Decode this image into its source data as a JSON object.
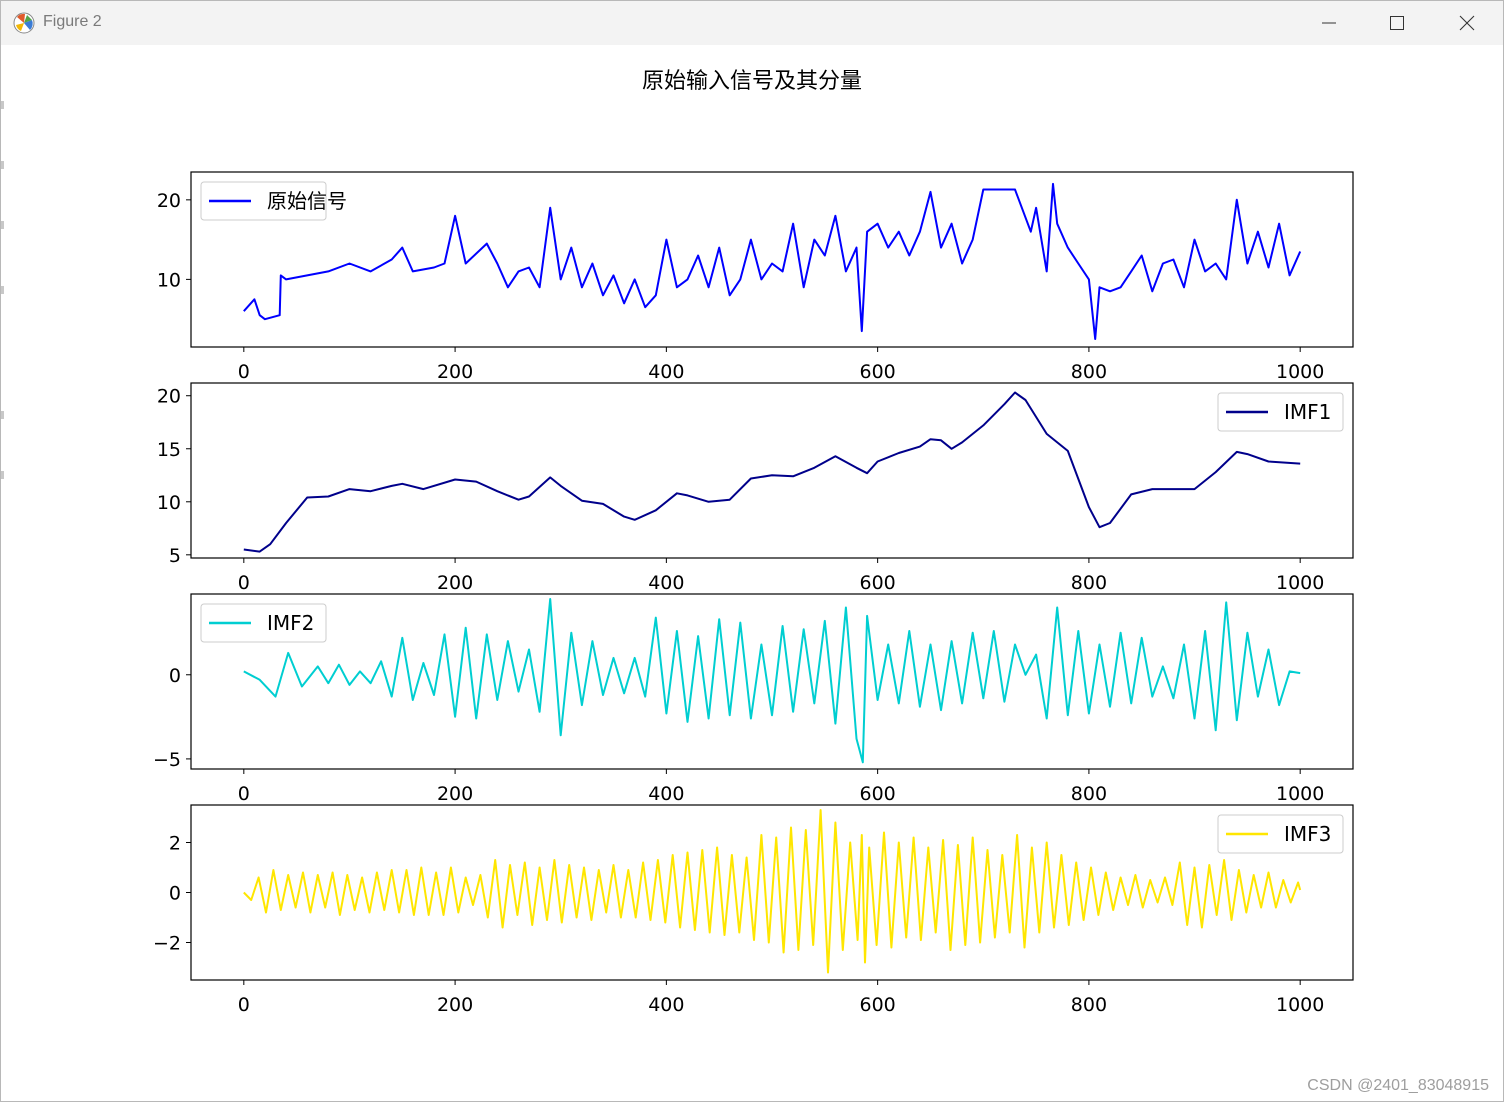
{
  "window": {
    "title": "Figure 2",
    "minimize_icon": "minimize-icon",
    "maximize_icon": "maximize-icon",
    "close_icon": "close-icon",
    "app_icon": "matplotlib-icon"
  },
  "figure": {
    "suptitle": "原始输入信号及其分量"
  },
  "watermark": "CSDN @2401_83048915",
  "colors": {
    "original": "#0000ff",
    "imf1": "#00008b",
    "imf2": "#00ced1",
    "imf3": "#ffe600"
  },
  "chart_data": [
    {
      "type": "line",
      "name": "原始信号",
      "legend": "原始信号",
      "legend_loc": "upper left",
      "color": "#0000ff",
      "xlim": [
        -50,
        1050
      ],
      "ylim": [
        1.5,
        23.5
      ],
      "xticks": [
        0,
        200,
        400,
        600,
        800,
        1000
      ],
      "yticks": [
        10,
        20
      ],
      "x": [
        0,
        10,
        15,
        20,
        34,
        35,
        40,
        60,
        80,
        100,
        120,
        140,
        150,
        160,
        180,
        190,
        200,
        210,
        230,
        240,
        250,
        260,
        270,
        280,
        290,
        300,
        310,
        320,
        330,
        340,
        350,
        360,
        370,
        380,
        390,
        400,
        410,
        420,
        430,
        440,
        450,
        460,
        470,
        480,
        490,
        500,
        510,
        520,
        530,
        540,
        550,
        560,
        570,
        580,
        585,
        590,
        600,
        610,
        620,
        630,
        640,
        650,
        660,
        670,
        680,
        690,
        700,
        710,
        720,
        730,
        745,
        750,
        760,
        766,
        770,
        780,
        790,
        800,
        806,
        810,
        820,
        830,
        840,
        850,
        860,
        870,
        880,
        890,
        900,
        910,
        920,
        930,
        940,
        950,
        960,
        970,
        980,
        990,
        1000
      ],
      "y": [
        6,
        7.5,
        5.5,
        5,
        5.5,
        10.5,
        10,
        10.5,
        11,
        12,
        11,
        12.5,
        14,
        11,
        11.5,
        12,
        18,
        12,
        14.5,
        12,
        9,
        11,
        11.5,
        9,
        19,
        10,
        14,
        9,
        12,
        8,
        10.5,
        7,
        10,
        6.5,
        8,
        15,
        9,
        10,
        13,
        9,
        14,
        8,
        10,
        15,
        10,
        12,
        11,
        17,
        9,
        15,
        13,
        18,
        11,
        14,
        3.5,
        16,
        17,
        14,
        16,
        13,
        16,
        21,
        14,
        17,
        12,
        15,
        21.3,
        21.3,
        21.3,
        21.3,
        16,
        19,
        11,
        22,
        17,
        14,
        12,
        10,
        2.5,
        9,
        8.5,
        9,
        11,
        13,
        8.5,
        12,
        12.5,
        9,
        15,
        11,
        12,
        10,
        20,
        12,
        16,
        11.5,
        17,
        10.5,
        13.5
      ]
    },
    {
      "type": "line",
      "name": "IMF1",
      "legend": "IMF1",
      "legend_loc": "upper right",
      "color": "#00008b",
      "xlim": [
        -50,
        1050
      ],
      "ylim": [
        4.7,
        21.2
      ],
      "xticks": [
        0,
        200,
        400,
        600,
        800,
        1000
      ],
      "yticks": [
        5,
        10,
        15,
        20
      ],
      "x": [
        0,
        15,
        25,
        40,
        60,
        80,
        100,
        120,
        140,
        150,
        170,
        200,
        220,
        240,
        260,
        270,
        290,
        300,
        320,
        340,
        360,
        370,
        390,
        410,
        420,
        440,
        460,
        480,
        500,
        520,
        540,
        560,
        580,
        590,
        600,
        620,
        640,
        650,
        660,
        670,
        680,
        700,
        720,
        730,
        740,
        760,
        780,
        800,
        810,
        820,
        840,
        860,
        880,
        900,
        920,
        940,
        950,
        970,
        1000
      ],
      "y": [
        5.5,
        5.3,
        6,
        8,
        10.4,
        10.5,
        11.2,
        11,
        11.5,
        11.7,
        11.2,
        12.1,
        11.9,
        11,
        10.2,
        10.5,
        12.3,
        11.5,
        10.1,
        9.8,
        8.6,
        8.3,
        9.2,
        10.8,
        10.6,
        10,
        10.2,
        12.2,
        12.5,
        12.4,
        13.2,
        14.3,
        13.2,
        12.7,
        13.8,
        14.6,
        15.2,
        15.9,
        15.8,
        15,
        15.6,
        17.2,
        19.2,
        20.3,
        19.6,
        16.4,
        14.8,
        9.5,
        7.6,
        8,
        10.7,
        11.2,
        11.2,
        11.2,
        12.8,
        14.7,
        14.5,
        13.8,
        13.6
      ]
    },
    {
      "type": "line",
      "name": "IMF2",
      "legend": "IMF2",
      "legend_loc": "upper left",
      "color": "#00ced1",
      "xlim": [
        -50,
        1050
      ],
      "ylim": [
        -5.6,
        4.8
      ],
      "xticks": [
        0,
        200,
        400,
        600,
        800,
        1000
      ],
      "yticks": [
        -5,
        0
      ],
      "x": [
        0,
        15,
        30,
        42,
        55,
        70,
        80,
        90,
        100,
        110,
        120,
        130,
        140,
        150,
        160,
        170,
        180,
        190,
        200,
        210,
        220,
        230,
        240,
        250,
        260,
        270,
        280,
        290,
        300,
        310,
        320,
        330,
        340,
        350,
        360,
        370,
        380,
        390,
        400,
        410,
        420,
        430,
        440,
        450,
        460,
        470,
        480,
        490,
        500,
        510,
        520,
        530,
        540,
        550,
        560,
        570,
        580,
        586,
        590,
        600,
        610,
        620,
        630,
        640,
        650,
        660,
        670,
        680,
        690,
        700,
        710,
        720,
        730,
        740,
        750,
        760,
        770,
        780,
        790,
        800,
        810,
        820,
        830,
        840,
        850,
        860,
        870,
        880,
        890,
        900,
        910,
        920,
        930,
        940,
        950,
        960,
        970,
        980,
        990,
        1000
      ],
      "y": [
        0.2,
        -0.3,
        -1.3,
        1.3,
        -0.7,
        0.5,
        -0.5,
        0.6,
        -0.6,
        0.2,
        -0.5,
        0.8,
        -1.3,
        2.2,
        -1.5,
        0.7,
        -1.2,
        2.4,
        -2.5,
        2.8,
        -2.6,
        2.4,
        -1.5,
        2,
        -1,
        1.5,
        -2.2,
        4.5,
        -3.6,
        2.5,
        -1.8,
        2,
        -1.2,
        1,
        -1.1,
        1,
        -1.3,
        3.4,
        -2.3,
        2.6,
        -2.8,
        2.3,
        -2.6,
        3.3,
        -2.4,
        3.1,
        -2.6,
        1.8,
        -2.4,
        2.9,
        -2.2,
        2.7,
        -1.7,
        3.2,
        -2.9,
        4,
        -3.8,
        -5.2,
        3.5,
        -1.5,
        1.8,
        -1.7,
        2.6,
        -1.9,
        1.8,
        -2.1,
        2,
        -1.7,
        2.5,
        -1.4,
        2.6,
        -1.6,
        1.8,
        0,
        1.2,
        -2.6,
        4,
        -2.4,
        2.6,
        -2.3,
        1.8,
        -1.9,
        2.5,
        -1.7,
        2.2,
        -1.3,
        0.5,
        -1.4,
        1.8,
        -2.6,
        2.6,
        -3.3,
        4.3,
        -2.7,
        2.5,
        -1.3,
        1.5,
        -1.8,
        0.2,
        0.1
      ]
    },
    {
      "type": "line",
      "name": "IMF3",
      "legend": "IMF3",
      "legend_loc": "upper right",
      "color": "#ffe600",
      "xlim": [
        -50,
        1050
      ],
      "ylim": [
        -3.5,
        3.5
      ],
      "xticks": [
        0,
        200,
        400,
        600,
        800,
        1000
      ],
      "yticks": [
        -2,
        0,
        2
      ],
      "x": [
        0,
        7,
        14,
        21,
        28,
        35,
        42,
        49,
        56,
        63,
        70,
        77,
        84,
        91,
        98,
        105,
        112,
        119,
        126,
        133,
        140,
        147,
        154,
        161,
        168,
        175,
        182,
        189,
        196,
        203,
        210,
        217,
        224,
        231,
        238,
        245,
        252,
        259,
        266,
        273,
        280,
        287,
        294,
        301,
        308,
        315,
        322,
        329,
        336,
        343,
        350,
        357,
        364,
        371,
        378,
        385,
        392,
        399,
        406,
        413,
        420,
        427,
        434,
        441,
        448,
        455,
        462,
        469,
        476,
        483,
        490,
        497,
        504,
        511,
        518,
        525,
        532,
        539,
        546,
        553,
        560,
        567,
        574,
        581,
        585,
        588,
        592,
        599,
        606,
        613,
        620,
        627,
        634,
        641,
        648,
        655,
        662,
        669,
        676,
        683,
        690,
        697,
        704,
        711,
        718,
        725,
        732,
        739,
        746,
        753,
        760,
        767,
        774,
        781,
        788,
        795,
        802,
        809,
        816,
        823,
        830,
        837,
        844,
        851,
        858,
        865,
        872,
        879,
        886,
        893,
        900,
        907,
        914,
        921,
        928,
        935,
        942,
        949,
        956,
        963,
        970,
        977,
        984,
        991,
        998,
        1000
      ],
      "y": [
        0,
        -0.3,
        0.6,
        -0.8,
        0.9,
        -0.7,
        0.7,
        -0.6,
        0.8,
        -0.8,
        0.7,
        -0.6,
        0.8,
        -0.9,
        0.7,
        -0.7,
        0.6,
        -0.8,
        0.8,
        -0.7,
        0.9,
        -0.8,
        0.9,
        -0.9,
        1,
        -0.9,
        0.8,
        -0.9,
        1,
        -0.8,
        0.6,
        -0.5,
        0.7,
        -1,
        1.3,
        -1.4,
        1.1,
        -0.9,
        1.2,
        -1.3,
        1,
        -1.1,
        1.3,
        -1.2,
        1.1,
        -1,
        1,
        -1.1,
        0.9,
        -0.8,
        1.1,
        -1,
        0.9,
        -1,
        1.2,
        -1.1,
        1.3,
        -1.2,
        1.5,
        -1.4,
        1.6,
        -1.5,
        1.7,
        -1.6,
        1.8,
        -1.7,
        1.5,
        -1.6,
        1.4,
        -1.9,
        2.3,
        -2,
        2.2,
        -2.4,
        2.6,
        -2.3,
        2.5,
        -2.1,
        3.3,
        -3.2,
        2.8,
        -2.3,
        2,
        -1.9,
        2.3,
        -2.8,
        1.8,
        -2.1,
        2.4,
        -2.2,
        2,
        -1.8,
        2.2,
        -1.9,
        1.8,
        -1.6,
        2.1,
        -2.3,
        1.9,
        -2.1,
        2.2,
        -2,
        1.7,
        -1.8,
        1.5,
        -1.6,
        2.3,
        -2.2,
        1.8,
        -1.6,
        2,
        -1.4,
        1.5,
        -1.3,
        1.2,
        -1.1,
        1,
        -0.9,
        0.8,
        -0.7,
        0.6,
        -0.5,
        0.7,
        -0.6,
        0.5,
        -0.4,
        0.6,
        -0.5,
        1.2,
        -1.3,
        1,
        -1.4,
        1.1,
        -0.9,
        1.3,
        -1.1,
        0.9,
        -0.8,
        0.7,
        -0.6,
        0.8,
        -0.6,
        0.5,
        -0.4,
        0.4,
        0.1
      ]
    }
  ]
}
